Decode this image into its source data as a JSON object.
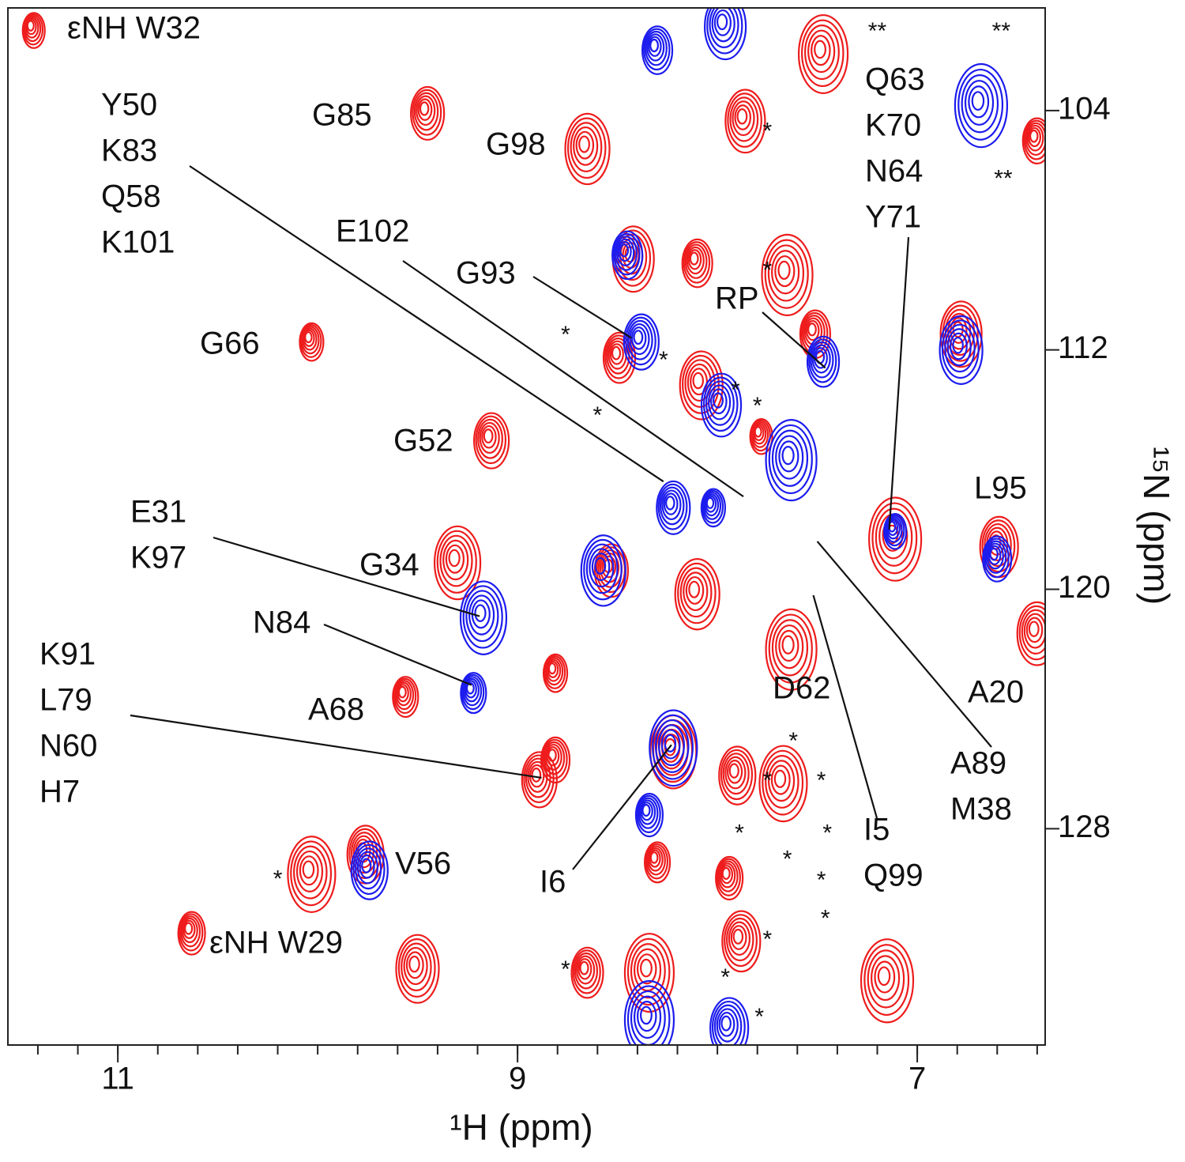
{
  "chart_data": {
    "type": "contour",
    "xlabel": "¹H (ppm)",
    "ylabel": "¹⁵N (ppm)",
    "xlim": [
      11.55,
      6.36
    ],
    "ylim": [
      100.57,
      135.23
    ],
    "xticks": [
      11,
      9,
      7
    ],
    "xminorticks": [
      11.4,
      11.2,
      11.0,
      10.8,
      10.6,
      10.4,
      10.2,
      10.0,
      9.8,
      9.6,
      9.4,
      9.2,
      9.0,
      8.8,
      8.6,
      8.4,
      8.2,
      8.0,
      7.8,
      7.6,
      7.4,
      7.2,
      7.0,
      6.8,
      6.6,
      6.4
    ],
    "yticks": [
      104,
      112,
      120,
      128
    ],
    "series": [
      {
        "color": "#ee1c1c",
        "x": [
          11.43,
          9.46,
          8.66,
          10.04,
          9.14,
          9.31,
          9.57,
          9.77,
          10.04,
          10.64,
          6.6,
          7.48,
          6.41,
          7.87,
          7.66,
          7.52,
          6.79,
          7.12,
          8.5,
          8.09,
          7.79,
          8.54,
          8.11,
          8.82,
          8.9,
          8.23,
          8.31,
          7.91,
          7.68,
          7.95,
          7.89,
          8.35,
          8.82,
          6.41,
          7.64,
          8.11,
          8.43,
          7.16,
          8.66,
          9.51
        ],
        "y": [
          101.23,
          104.0,
          105.19,
          111.64,
          114.94,
          119.02,
          123.5,
          128.77,
          129.43,
          131.4,
          118.49,
          102.02,
          104.92,
          104.26,
          109.4,
          111.38,
          111.38,
          118.23,
          112.17,
          113.09,
          114.8,
          119.28,
          120.07,
          122.71,
          126.27,
          125.34,
          129.03,
          126.13,
          126.4,
          129.56,
          131.67,
          132.72,
          125.61,
          121.39,
          121.92,
          109.01,
          108.87,
          132.99,
          132.72,
          132.59
        ]
      },
      {
        "color": "#1c1cee",
        "x": [
          8.31,
          7.97,
          6.69,
          7.48,
          6.79,
          7.12,
          8.23,
          8.58,
          8.03,
          8.39,
          9.18,
          9.23,
          9.75,
          8.23,
          8.35,
          7.95,
          8.35,
          6.61,
          7.99,
          7.64,
          8.46
        ],
        "y": [
          101.89,
          101.1,
          103.74,
          112.3,
          111.91,
          117.97,
          117.18,
          119.28,
          117.18,
          111.64,
          120.86,
          123.37,
          129.3,
          125.21,
          127.45,
          134.57,
          134.3,
          118.89,
          113.75,
          115.59,
          108.74
        ]
      }
    ],
    "annotations": [
      {
        "text": [
          "εNH W32"
        ]
      },
      {
        "text": [
          "G85"
        ]
      },
      {
        "text": [
          "G98"
        ]
      },
      {
        "text": [
          "Y50",
          "K83",
          "Q58",
          "K101"
        ],
        "x": 8.27,
        "y": 116.4
      },
      {
        "text": [
          "E102"
        ],
        "x": 7.87,
        "y": 116.9
      },
      {
        "text": [
          "G93"
        ],
        "x": 8.43,
        "y": 111.6
      },
      {
        "text": [
          "RP"
        ],
        "x": 7.46,
        "y": 112.6
      },
      {
        "text": [
          "Q63",
          "K70",
          "N64",
          "Y71"
        ],
        "x": 7.14,
        "y": 118.0
      },
      {
        "text": [
          "G66"
        ]
      },
      {
        "text": [
          "G52"
        ]
      },
      {
        "text": [
          "L95"
        ]
      },
      {
        "text": [
          "E31",
          "K97"
        ],
        "x": 9.19,
        "y": 120.9
      },
      {
        "text": [
          "G34"
        ]
      },
      {
        "text": [
          "N84"
        ],
        "x": 9.23,
        "y": 123.2
      },
      {
        "text": [
          "K91",
          "L79",
          "N60",
          "H7"
        ],
        "x": 8.88,
        "y": 126.3
      },
      {
        "text": [
          "A68"
        ]
      },
      {
        "text": [
          "D62"
        ]
      },
      {
        "text": [
          "A20"
        ]
      },
      {
        "text": [
          "A89",
          "M38"
        ],
        "x": 7.5,
        "y": 118.4
      },
      {
        "text": [
          "I5",
          "Q99"
        ],
        "x": 7.52,
        "y": 120.2
      },
      {
        "text": [
          "V56"
        ]
      },
      {
        "text": [
          "I6"
        ],
        "x": 8.23,
        "y": 125.2
      },
      {
        "text": [
          "εNH W29"
        ]
      }
    ],
    "markers": {
      "text": "*",
      "x": [
        7.75,
        8.76,
        8.27,
        7.91,
        7.8,
        8.6,
        7.75,
        7.62,
        7.75,
        7.48,
        7.89,
        7.45,
        7.65,
        7.48,
        7.46,
        7.75,
        8.76,
        7.96,
        7.79,
        10.2
      ],
      "y": [
        104.58,
        111.38,
        112.22,
        113.22,
        113.75,
        114.07,
        109.22,
        124.95,
        126.27,
        126.27,
        128.03,
        128.03,
        128.9,
        129.61,
        130.88,
        131.59,
        132.59,
        132.85,
        134.17,
        129.56
      ]
    },
    "double_markers": {
      "text": "**",
      "x": [
        7.2,
        6.58,
        6.57
      ],
      "y": [
        101.23,
        101.23,
        106.16
      ]
    }
  }
}
